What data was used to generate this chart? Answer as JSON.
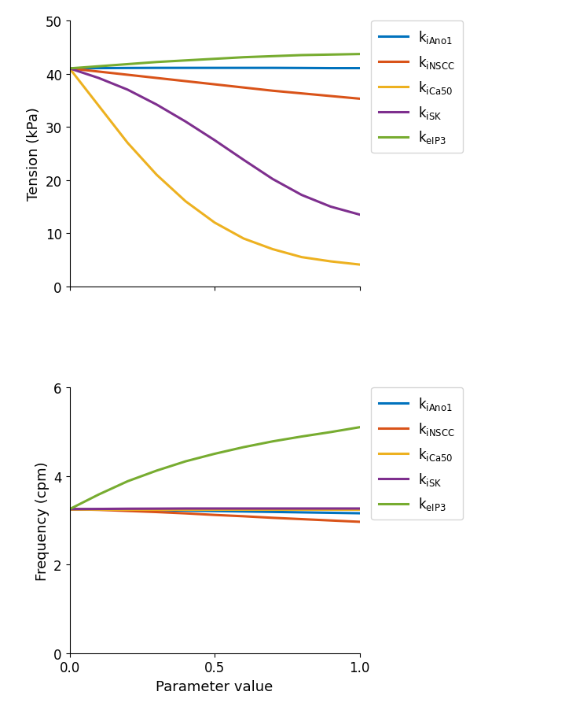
{
  "x": [
    0.0,
    0.1,
    0.2,
    0.3,
    0.4,
    0.5,
    0.6,
    0.7,
    0.8,
    0.9,
    1.0
  ],
  "tension": {
    "k_iAno1": [
      41.0,
      41.05,
      41.08,
      41.1,
      41.1,
      41.1,
      41.1,
      41.1,
      41.08,
      41.05,
      41.05
    ],
    "k_iNSCC": [
      41.0,
      40.4,
      39.8,
      39.2,
      38.6,
      38.0,
      37.4,
      36.8,
      36.3,
      35.8,
      35.3
    ],
    "k_iCa50": [
      41.0,
      34.0,
      27.0,
      21.0,
      16.0,
      12.0,
      9.0,
      7.0,
      5.5,
      4.7,
      4.1
    ],
    "k_iSK": [
      41.0,
      39.2,
      37.0,
      34.2,
      31.0,
      27.5,
      23.8,
      20.2,
      17.2,
      15.0,
      13.5
    ],
    "k_eIP3": [
      41.0,
      41.4,
      41.8,
      42.2,
      42.5,
      42.8,
      43.1,
      43.3,
      43.5,
      43.6,
      43.7
    ]
  },
  "frequency": {
    "k_iAno1": [
      3.25,
      3.245,
      3.238,
      3.228,
      3.218,
      3.208,
      3.198,
      3.188,
      3.178,
      3.168,
      3.158
    ],
    "k_iNSCC": [
      3.25,
      3.235,
      3.21,
      3.185,
      3.155,
      3.12,
      3.09,
      3.055,
      3.025,
      2.995,
      2.965
    ],
    "k_iCa50": [
      3.25,
      3.25,
      3.25,
      3.25,
      3.25,
      3.25,
      3.25,
      3.25,
      3.25,
      3.25,
      3.25
    ],
    "k_iSK": [
      3.25,
      3.255,
      3.26,
      3.262,
      3.265,
      3.265,
      3.265,
      3.265,
      3.265,
      3.265,
      3.265
    ],
    "k_eIP3": [
      3.25,
      3.58,
      3.88,
      4.12,
      4.33,
      4.5,
      4.65,
      4.78,
      4.89,
      4.99,
      5.1
    ]
  },
  "colors": {
    "k_iAno1": "#0072BD",
    "k_iNSCC": "#D95319",
    "k_iCa50": "#EDB120",
    "k_iSK": "#7E2F8E",
    "k_eIP3": "#77AC30"
  },
  "legend_main": [
    "k",
    "k",
    "k",
    "k",
    "k"
  ],
  "legend_sub": [
    "iAno1",
    "iNSCC",
    "iCa50",
    "iSK",
    "eIP3"
  ],
  "keys": [
    "k_iAno1",
    "k_iNSCC",
    "k_iCa50",
    "k_iSK",
    "k_eIP3"
  ],
  "tension_ylim": [
    0,
    50
  ],
  "tension_yticks": [
    0,
    10,
    20,
    30,
    40,
    50
  ],
  "frequency_ylim": [
    0,
    6
  ],
  "frequency_yticks": [
    0,
    2,
    4,
    6
  ],
  "xlim": [
    0,
    1
  ],
  "xticks": [
    0,
    0.5,
    1
  ],
  "xlabel": "Parameter value",
  "ylabel_top": "Tension (kPa)",
  "ylabel_bottom": "Frequency (cpm)",
  "linewidth": 2.2,
  "fig_width": 7.38,
  "fig_height": 9.03
}
